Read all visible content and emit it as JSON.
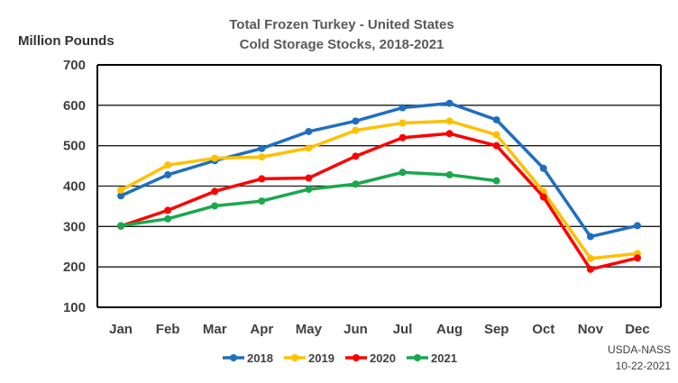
{
  "chart_data": {
    "type": "line",
    "title": [
      "Total Frozen Turkey - United States",
      "Cold Storage Stocks, 2018-2021"
    ],
    "ylabel": "Million Pounds",
    "xlabel": "",
    "ylim": [
      100,
      700
    ],
    "yticks": [
      100,
      200,
      300,
      400,
      500,
      600,
      700
    ],
    "categories": [
      "Jan",
      "Feb",
      "Mar",
      "Apr",
      "May",
      "Jun",
      "Jul",
      "Aug",
      "Sep",
      "Oct",
      "Nov",
      "Dec"
    ],
    "grid": true,
    "legend_position": "bottom",
    "series": [
      {
        "name": "2018",
        "color": "#1f6fbf",
        "values": [
          376,
          428,
          463,
          493,
          535,
          561,
          594,
          605,
          564,
          444,
          275,
          302
        ]
      },
      {
        "name": "2019",
        "color": "#ffc000",
        "values": [
          390,
          452,
          469,
          472,
          494,
          538,
          556,
          561,
          527,
          386,
          221,
          233
        ]
      },
      {
        "name": "2020",
        "color": "#ff0000",
        "values": [
          301,
          340,
          387,
          418,
          420,
          474,
          520,
          530,
          500,
          373,
          194,
          222
        ]
      },
      {
        "name": "2021",
        "color": "#19a84e",
        "values": [
          302,
          319,
          351,
          363,
          392,
          405,
          434,
          428,
          413,
          null,
          null,
          null
        ]
      }
    ],
    "source": [
      "USDA-NASS",
      "10-22-2021"
    ]
  }
}
